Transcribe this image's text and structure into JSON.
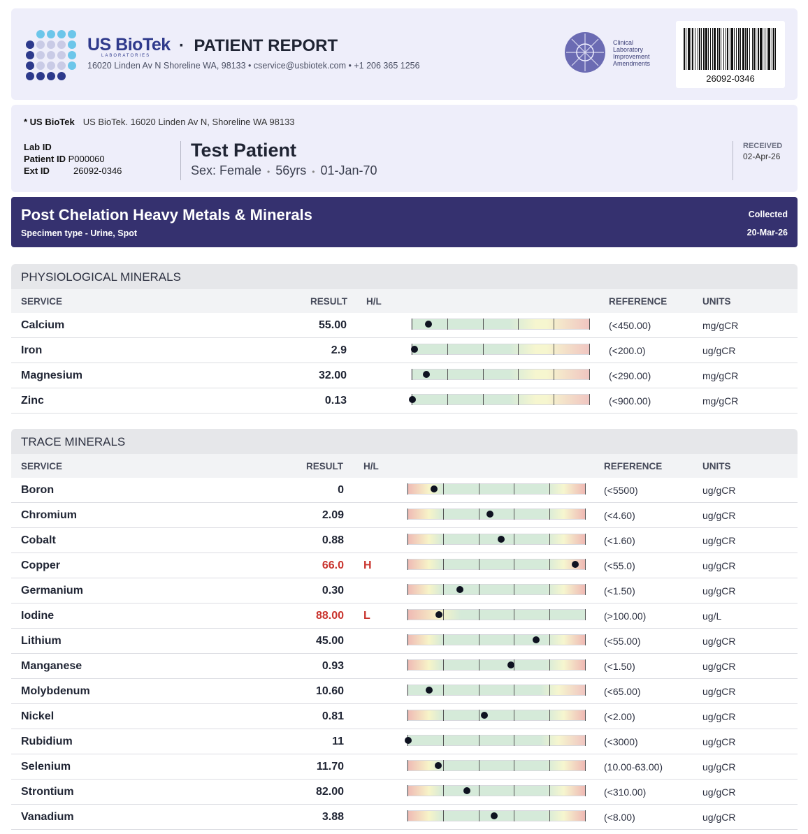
{
  "header": {
    "brand": "US BioTek",
    "brand_sub": "LABORATORIES",
    "title_sep": "·",
    "report_title": "PATIENT REPORT",
    "contact": "16020 Linden Av N Shoreline WA, 98133  •  cservice@usbiotek.com  •  +1 206 365 1256",
    "clia_lines": [
      "Clinical",
      "Laboratory",
      "Improvement",
      "Amendments"
    ],
    "barcode_number": "26092-0346"
  },
  "patient": {
    "lab_name": "* US BioTek",
    "lab_address": "US BioTek. 16020 Linden Av N, Shoreline WA 98133",
    "lab_id_label": "Lab ID",
    "lab_id": "",
    "patient_id_label": "Patient ID",
    "patient_id": "P000060",
    "ext_id_label": "Ext ID",
    "ext_id": "26092-0346",
    "name": "Test Patient",
    "sex": "Sex: Female",
    "age": "56yrs",
    "dob": "01-Jan-70",
    "dot_sep": "•",
    "received_label": "RECEIVED",
    "received_date": "02-Apr-26"
  },
  "panel": {
    "title": "Post Chelation Heavy Metals & Minerals",
    "specimen": "Specimen type - Urine, Spot",
    "collected_label": "Collected",
    "collected_date": "20-Mar-26"
  },
  "columns": {
    "service": "SERVICE",
    "result": "RESULT",
    "hl": "H/L",
    "reference": "REFERENCE",
    "units": "UNITS"
  },
  "sections": [
    {
      "title": "PHYSIOLOGICAL MINERALS",
      "rows": [
        {
          "service": "Calcium",
          "result": "55.00",
          "flag": "",
          "reference": "(<450.00)",
          "units": "mg/gCR",
          "gauge": 0.09,
          "style": "g1"
        },
        {
          "service": "Iron",
          "result": "2.9",
          "flag": "",
          "reference": "(<200.0)",
          "units": "ug/gCR",
          "gauge": 0.01,
          "style": "g1"
        },
        {
          "service": "Magnesium",
          "result": "32.00",
          "flag": "",
          "reference": "(<290.00)",
          "units": "mg/gCR",
          "gauge": 0.08,
          "style": "g1"
        },
        {
          "service": "Zinc",
          "result": "0.13",
          "flag": "",
          "reference": "(<900.00)",
          "units": "mg/gCR",
          "gauge": 0.0,
          "style": "g1"
        }
      ]
    },
    {
      "title": "TRACE MINERALS",
      "rows": [
        {
          "service": "Boron",
          "result": "0",
          "flag": "",
          "reference": "(<5500)",
          "units": "ug/gCR",
          "gauge": 0.145,
          "style": "g2"
        },
        {
          "service": "Chromium",
          "result": "2.09",
          "flag": "",
          "reference": "(<4.60)",
          "units": "ug/gCR",
          "gauge": 0.46,
          "style": "g2"
        },
        {
          "service": "Cobalt",
          "result": "0.88",
          "flag": "",
          "reference": "(<1.60)",
          "units": "ug/gCR",
          "gauge": 0.525,
          "style": "g2"
        },
        {
          "service": "Copper",
          "result": "66.0",
          "flag": "H",
          "reference": "(<55.0)",
          "units": "ug/gCR",
          "gauge": 0.94,
          "style": "g2"
        },
        {
          "service": "Germanium",
          "result": "0.30",
          "flag": "",
          "reference": "(<1.50)",
          "units": "ug/gCR",
          "gauge": 0.29,
          "style": "g2"
        },
        {
          "service": "Iodine",
          "result": "88.00",
          "flag": "L",
          "reference": "(>100.00)",
          "units": "ug/L",
          "gauge": 0.175,
          "style": "g4"
        },
        {
          "service": "Lithium",
          "result": "45.00",
          "flag": "",
          "reference": "(<55.00)",
          "units": "ug/gCR",
          "gauge": 0.72,
          "style": "g2"
        },
        {
          "service": "Manganese",
          "result": "0.93",
          "flag": "",
          "reference": "(<1.50)",
          "units": "ug/gCR",
          "gauge": 0.58,
          "style": "g2"
        },
        {
          "service": "Molybdenum",
          "result": "10.60",
          "flag": "",
          "reference": "(<65.00)",
          "units": "ug/gCR",
          "gauge": 0.12,
          "style": "g3"
        },
        {
          "service": "Nickel",
          "result": "0.81",
          "flag": "",
          "reference": "(<2.00)",
          "units": "ug/gCR",
          "gauge": 0.43,
          "style": "g2"
        },
        {
          "service": "Rubidium",
          "result": "11",
          "flag": "",
          "reference": "(<3000)",
          "units": "ug/gCR",
          "gauge": 0.0,
          "style": "g3"
        },
        {
          "service": "Selenium",
          "result": "11.70",
          "flag": "",
          "reference": "(10.00-63.00)",
          "units": "ug/gCR",
          "gauge": 0.17,
          "style": "g2"
        },
        {
          "service": "Strontium",
          "result": "82.00",
          "flag": "",
          "reference": "(<310.00)",
          "units": "ug/gCR",
          "gauge": 0.33,
          "style": "g2"
        },
        {
          "service": "Vanadium",
          "result": "3.88",
          "flag": "",
          "reference": "(<8.00)",
          "units": "ug/gCR",
          "gauge": 0.485,
          "style": "g2"
        }
      ]
    }
  ]
}
